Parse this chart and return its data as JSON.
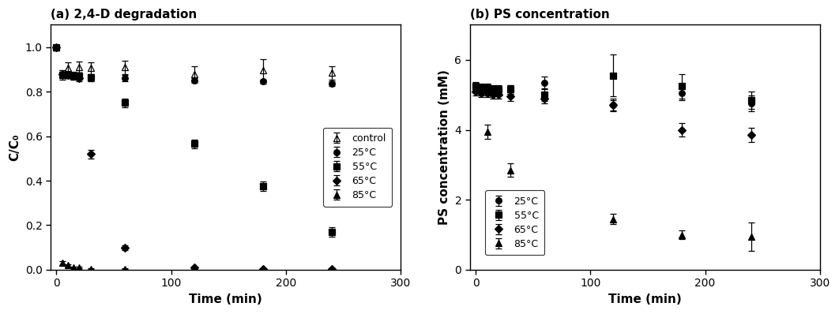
{
  "panel_a": {
    "title": "(a) 2,4-D degradation",
    "xlabel": "Time (min)",
    "ylabel": "C/C₀",
    "xlim": [
      -5,
      300
    ],
    "ylim": [
      0,
      1.1
    ],
    "yticks": [
      0.0,
      0.2,
      0.4,
      0.6,
      0.8,
      1.0
    ],
    "xticks": [
      0,
      100,
      200,
      300
    ],
    "series": {
      "control": {
        "x": [
          0,
          10,
          20,
          30,
          60,
          120,
          180,
          240
        ],
        "y": [
          1.0,
          0.905,
          0.91,
          0.905,
          0.91,
          0.88,
          0.895,
          0.885
        ],
        "yerr": [
          0.0,
          0.025,
          0.025,
          0.025,
          0.03,
          0.035,
          0.05,
          0.03
        ],
        "marker": "^",
        "fillstyle": "none",
        "label": "control"
      },
      "25C": {
        "x": [
          0,
          5,
          10,
          15,
          20,
          30,
          60,
          120,
          180,
          240
        ],
        "y": [
          1.0,
          0.875,
          0.875,
          0.875,
          0.87,
          0.86,
          0.86,
          0.85,
          0.845,
          0.835
        ],
        "yerr": [
          0.0,
          0.02,
          0.015,
          0.015,
          0.015,
          0.015,
          0.015,
          0.01,
          0.01,
          0.01
        ],
        "marker": "o",
        "fillstyle": "full",
        "label": "25°C"
      },
      "55C": {
        "x": [
          0,
          5,
          10,
          15,
          20,
          30,
          60,
          120,
          180,
          240
        ],
        "y": [
          1.0,
          0.875,
          0.875,
          0.87,
          0.87,
          0.865,
          0.75,
          0.565,
          0.375,
          0.17
        ],
        "yerr": [
          0.0,
          0.015,
          0.015,
          0.015,
          0.015,
          0.015,
          0.02,
          0.02,
          0.02,
          0.02
        ],
        "marker": "s",
        "fillstyle": "full",
        "label": "55°C"
      },
      "65C": {
        "x": [
          0,
          5,
          10,
          15,
          20,
          30,
          60,
          120,
          180,
          240
        ],
        "y": [
          1.0,
          0.88,
          0.875,
          0.87,
          0.86,
          0.52,
          0.1,
          0.01,
          0.005,
          0.005
        ],
        "yerr": [
          0.0,
          0.015,
          0.015,
          0.015,
          0.015,
          0.02,
          0.01,
          0.005,
          0.003,
          0.003
        ],
        "marker": "D",
        "fillstyle": "full",
        "label": "65°C"
      },
      "85C": {
        "x": [
          0,
          5,
          10,
          15,
          20,
          30,
          60,
          120,
          180,
          240
        ],
        "y": [
          1.0,
          0.03,
          0.02,
          0.01,
          0.01,
          0.005,
          0.005,
          0.005,
          0.005,
          0.005
        ],
        "yerr": [
          0.0,
          0.01,
          0.005,
          0.003,
          0.003,
          0.002,
          0.002,
          0.002,
          0.002,
          0.002
        ],
        "marker": "^",
        "fillstyle": "full",
        "label": "85°C"
      }
    }
  },
  "panel_b": {
    "title": "(b) PS concentration",
    "xlabel": "Time (min)",
    "ylabel": "PS concentration (mM)",
    "xlim": [
      -5,
      300
    ],
    "ylim": [
      0,
      7
    ],
    "yticks": [
      0,
      2,
      4,
      6
    ],
    "xticks": [
      0,
      100,
      200,
      300
    ],
    "series": {
      "25C": {
        "x": [
          0,
          5,
          10,
          15,
          20,
          30,
          60,
          120,
          180,
          240
        ],
        "y": [
          5.2,
          5.1,
          5.1,
          5.1,
          5.1,
          5.15,
          5.35,
          4.7,
          5.05,
          4.75
        ],
        "yerr": [
          0.15,
          0.12,
          0.12,
          0.12,
          0.12,
          0.12,
          0.18,
          0.18,
          0.2,
          0.22
        ],
        "marker": "o",
        "fillstyle": "full",
        "label": "25°C"
      },
      "55C": {
        "x": [
          0,
          5,
          10,
          15,
          20,
          30,
          60,
          120,
          180,
          240
        ],
        "y": [
          5.25,
          5.2,
          5.2,
          5.15,
          5.15,
          5.15,
          5.0,
          5.55,
          5.25,
          4.85
        ],
        "yerr": [
          0.12,
          0.12,
          0.12,
          0.12,
          0.12,
          0.12,
          0.18,
          0.6,
          0.35,
          0.25
        ],
        "marker": "s",
        "fillstyle": "full",
        "label": "55°C"
      },
      "65C": {
        "x": [
          0,
          5,
          10,
          15,
          20,
          30,
          60,
          120,
          180,
          240
        ],
        "y": [
          5.1,
          5.05,
          5.05,
          5.0,
          5.0,
          4.95,
          4.9,
          4.7,
          4.0,
          3.85
        ],
        "yerr": [
          0.12,
          0.12,
          0.12,
          0.12,
          0.12,
          0.12,
          0.15,
          0.15,
          0.2,
          0.2
        ],
        "marker": "D",
        "fillstyle": "full",
        "label": "65°C"
      },
      "85C": {
        "x": [
          10,
          30,
          120,
          180,
          240
        ],
        "y": [
          3.95,
          2.85,
          1.45,
          1.0,
          0.95
        ],
        "yerr": [
          0.2,
          0.2,
          0.15,
          0.12,
          0.4
        ],
        "marker": "^",
        "fillstyle": "full",
        "label": "85°C"
      }
    }
  }
}
